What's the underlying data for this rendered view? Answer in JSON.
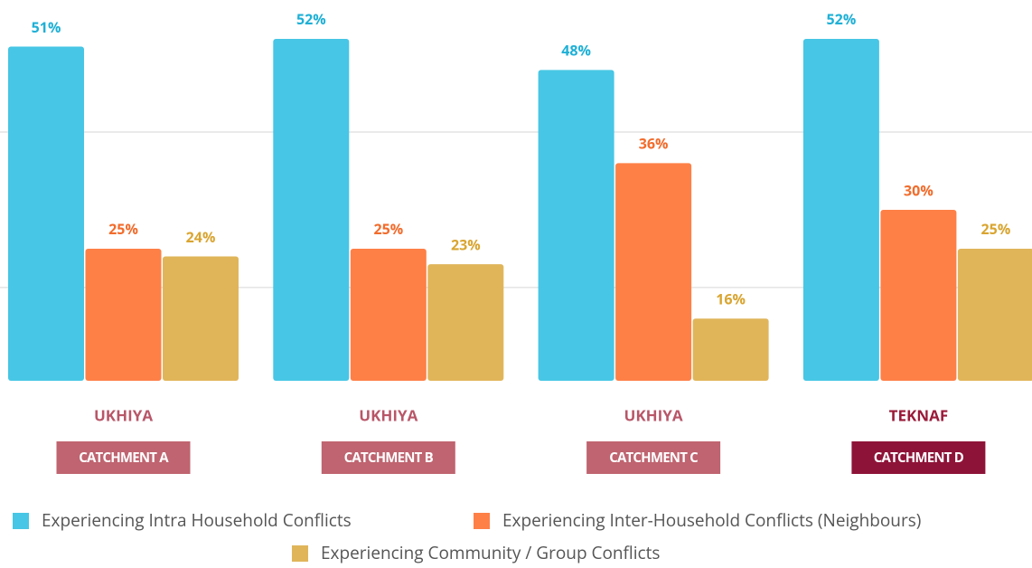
{
  "chart_data": {
    "type": "bar",
    "categories": [
      "CATCHMENT A",
      "CATCHMENT B",
      "CATCHMENT C",
      "CATCHMENT D"
    ],
    "districts": [
      "UKHIYA",
      "UKHIYA",
      "UKHIYA",
      "TEKNAF"
    ],
    "category_colors": [
      "#bf6470",
      "#bf6470",
      "#bf6470",
      "#8e1338"
    ],
    "district_colors": [
      "#b85668",
      "#b85668",
      "#b85668",
      "#9a1a3a"
    ],
    "series": [
      {
        "name": "Experiencing Intra Household Conflicts",
        "color": "#47c6e5",
        "label_color": "#1fb0d6",
        "values": [
          51,
          52,
          48,
          52
        ],
        "value_labels": [
          "51%",
          "52%",
          "48%",
          "52%"
        ]
      },
      {
        "name": "Experiencing Inter-Household Conflicts (Neighbours)",
        "color": "#fe8047",
        "label_color": "#f26c2c",
        "values": [
          25,
          25,
          36,
          30
        ],
        "value_labels": [
          "25%",
          "25%",
          "36%",
          "30%"
        ]
      },
      {
        "name": "Experiencing Community / Group Conflicts",
        "color": "#e0b55a",
        "label_color": "#d9a531",
        "values": [
          24,
          23,
          16,
          25
        ],
        "value_labels": [
          "24%",
          "23%",
          "16%",
          "25%"
        ]
      }
    ],
    "ylim": [
      8,
      57
    ],
    "yticks": [
      20,
      40
    ],
    "grid": true
  }
}
